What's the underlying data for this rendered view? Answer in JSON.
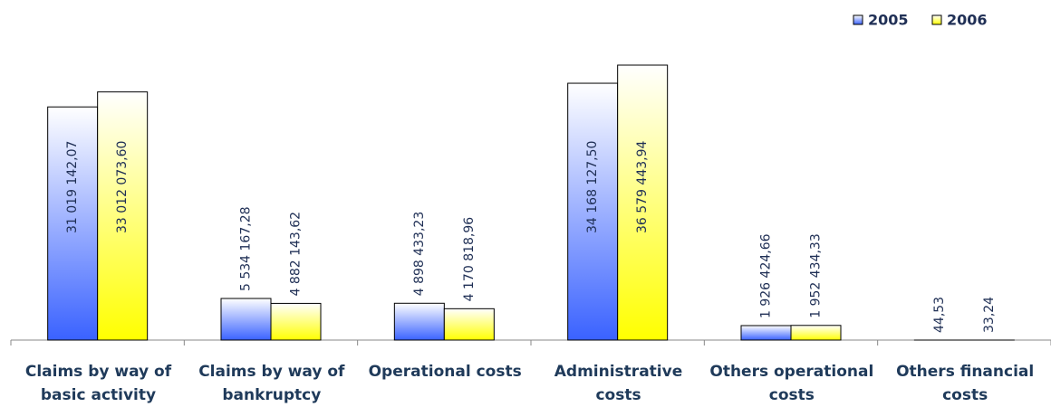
{
  "chart_data": {
    "type": "bar",
    "categories": [
      "Claims by way of basic activity",
      "Claims by way of bankruptcy",
      "Operational costs",
      "Administrative costs",
      "Others operational costs",
      "Others financial costs"
    ],
    "series": [
      {
        "name": "2005",
        "color": "#3a62ff",
        "values": [
          31019142.07,
          5534167.28,
          4898433.23,
          34168127.5,
          1926424.66,
          44.53
        ],
        "value_labels": [
          "31 019 142,07",
          "5 534 167,28",
          "4 898 433,23",
          "34 168 127,50",
          "1 926 424,66",
          "44,53"
        ]
      },
      {
        "name": "2006",
        "color": "#ffff00",
        "values": [
          33012073.6,
          4882143.62,
          4170818.96,
          36579443.94,
          1952434.33,
          33.24
        ],
        "value_labels": [
          "33 012 073,60",
          "4 882 143,62",
          "4 170 818,96",
          "36 579 443,94",
          "1 952 434,33",
          "33,24"
        ]
      }
    ],
    "legend": "top-right"
  }
}
